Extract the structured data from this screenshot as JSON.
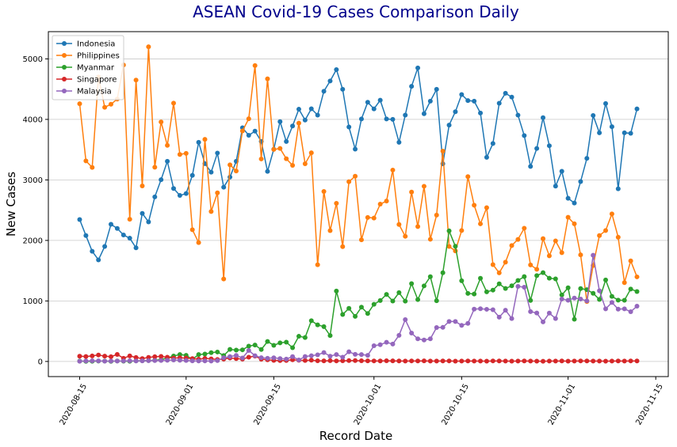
{
  "chart_data": {
    "type": "line",
    "title": "ASEAN Covid-19 Cases Comparison Daily",
    "xlabel": "Record Date",
    "ylabel": "New Cases",
    "start_date": "2020-08-15",
    "xlim": [
      "2020-08-10",
      "2020-11-17"
    ],
    "ylim": [
      -250,
      5450
    ],
    "x_ticks": [
      "2020-08-15",
      "2020-09-01",
      "2020-09-15",
      "2020-10-01",
      "2020-10-15",
      "2020-11-01",
      "2020-11-15"
    ],
    "y_ticks": [
      0,
      1000,
      2000,
      3000,
      4000,
      5000
    ],
    "grid": "horizontal",
    "legend_position": "upper-left",
    "series": [
      {
        "name": "Indonesia",
        "color": "#1f77b4",
        "values": [
          2345,
          2081,
          1821,
          1679,
          1901,
          2266,
          2198,
          2090,
          2037,
          1877,
          2447,
          2306,
          2719,
          3004,
          3308,
          2858,
          2743,
          2775,
          3075,
          3622,
          3269,
          3128,
          3444,
          2880,
          3046,
          3307,
          3861,
          3737,
          3806,
          3636,
          3141,
          3507,
          3963,
          3635,
          3891,
          4168,
          3989,
          4176,
          4071,
          4465,
          4634,
          4823,
          4497,
          3874,
          3509,
          4007,
          4284,
          4174,
          4317,
          4007,
          4000,
          3622,
          4071,
          4546,
          4850,
          4094,
          4301,
          4497,
          3267,
          3906,
          4127,
          4411,
          4311,
          4301,
          4105,
          3373,
          3602,
          4267,
          4432,
          4369,
          4070,
          3732,
          3222,
          3520,
          4029,
          3565,
          2897,
          3143,
          2696,
          2618,
          2973,
          3356,
          4065,
          3778,
          4262,
          3880,
          2853,
          3779,
          3770,
          4173
        ]
      },
      {
        "name": "Philippines",
        "color": "#ff7f0e",
        "values": [
          4258,
          3314,
          3207,
          4700,
          4200,
          4250,
          4336,
          4900,
          2350,
          4650,
          2900,
          5200,
          3210,
          3958,
          3570,
          4268,
          3420,
          3439,
          2177,
          1964,
          3670,
          2478,
          2786,
          1363,
          3249,
          3148,
          3809,
          4011,
          4889,
          3346,
          4671,
          3503,
          3520,
          3350,
          3240,
          3939,
          3267,
          3448,
          1599,
          2809,
          2162,
          2613,
          1898,
          2971,
          3061,
          2010,
          2380,
          2370,
          2600,
          2650,
          3163,
          2263,
          2068,
          2800,
          2229,
          2895,
          2019,
          2419,
          3476,
          1900,
          1827,
          2163,
          3054,
          2582,
          2274,
          2541,
          1600,
          1464,
          1641,
          1916,
          2017,
          2202,
          1595,
          1523,
          2030,
          1746,
          1992,
          1798,
          2382,
          2275,
          1762,
          991,
          1585,
          2080,
          2164,
          2439,
          2052,
          1303,
          1662,
          1398
        ]
      },
      {
        "name": "Myanmar",
        "color": "#2ca02c",
        "values": [
          6,
          1,
          3,
          6,
          7,
          2,
          8,
          5,
          3,
          10,
          12,
          14,
          19,
          30,
          60,
          90,
          115,
          101,
          33,
          114,
          122,
          145,
          156,
          98,
          199,
          188,
          192,
          254,
          272,
          197,
          330,
          267,
          307,
          319,
          227,
          416,
          396,
          673,
          604,
          576,
          428,
          1163,
          776,
          877,
          745,
          898,
          793,
          945,
          1006,
          1108,
          998,
          1137,
          997,
          1286,
          1023,
          1249,
          1401,
          1003,
          1466,
          2158,
          1903,
          1333,
          1124,
          1115,
          1374,
          1150,
          1179,
          1283,
          1206,
          1250,
          1338,
          1402,
          1009,
          1418,
          1467,
          1376,
          1364,
          1099,
          1218,
          697,
          1204,
          1187,
          1126,
          1025,
          1347,
          1075,
          1014,
          1012,
          1197,
          1156
        ]
      },
      {
        "name": "Singapore",
        "color": "#d62728",
        "values": [
          86,
          82,
          91,
          107,
          88,
          79,
          116,
          53,
          92,
          66,
          47,
          67,
          79,
          83,
          71,
          56,
          61,
          55,
          47,
          38,
          50,
          42,
          33,
          40,
          57,
          47,
          39,
          70,
          89,
          37,
          27,
          18,
          15,
          16,
          28,
          20,
          17,
          21,
          12,
          10,
          13,
          9,
          12,
          14,
          15,
          12,
          10,
          9,
          8,
          11,
          10,
          8,
          7,
          9,
          8,
          10,
          7,
          6,
          8,
          9,
          5,
          7,
          8,
          6,
          7,
          5,
          9,
          8,
          6,
          5,
          7,
          8,
          6,
          5,
          4,
          6,
          7,
          8,
          5,
          6,
          9,
          8,
          6,
          7,
          5,
          6,
          8,
          7,
          9,
          8
        ]
      },
      {
        "name": "Malaysia",
        "color": "#9467bd",
        "values": [
          3,
          8,
          12,
          10,
          5,
          7,
          6,
          9,
          11,
          8,
          10,
          13,
          15,
          17,
          20,
          24,
          19,
          16,
          10,
          8,
          9,
          6,
          14,
          62,
          80,
          100,
          58,
          182,
          95,
          62,
          52,
          60,
          47,
          40,
          80,
          25,
          82,
          95,
          110,
          147,
          87,
          115,
          71,
          160,
          117,
          115,
          101,
          260,
          277,
          317,
          287,
          432,
          691,
          469,
          374,
          354,
          374,
          561,
          563,
          660,
          660,
          596,
          629,
          865,
          871,
          862,
          855,
          732,
          847,
          710,
          1240,
          1228,
          823,
          801,
          653,
          799,
          710,
          1032,
          1012,
          1048,
          1032,
          1001,
          1755,
          1168,
          869,
          975,
          865,
          869,
          822,
          913
        ]
      }
    ]
  }
}
